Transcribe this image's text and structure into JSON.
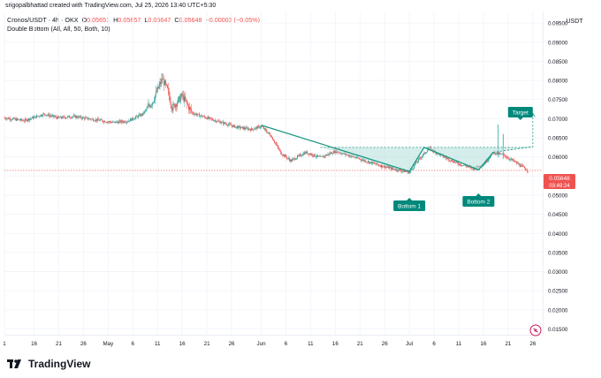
{
  "caption": "srigopalbhattad created with TradingView.com, Jul 25, 2026 13:40 UTC+5:30",
  "legend": {
    "symbol": "Cronos/USDT · 4h · OKX",
    "o_label": "O",
    "o_value": "0.05651",
    "h_label": "H",
    "h_value": "0.05657",
    "l_label": "L",
    "l_value": "0.05647",
    "c_label": "C",
    "c_value": "0.05648",
    "change": "−0.00003 (−0.05%)",
    "indicator": "Double Bottom (All, All, 50, Both, 10)"
  },
  "axis": {
    "currency": "USDT",
    "price_tag": "0.05648",
    "countdown": "03:49:24"
  },
  "annotations": {
    "bottom1": "Bottom 1",
    "bottom2": "Bottom 2",
    "target": "Target"
  },
  "brand": {
    "name": "TradingView"
  },
  "colors": {
    "up": "#26a69a",
    "down": "#ef5350",
    "pattern": "#1a9880",
    "pattern_fill": "#b2dfdb",
    "label_bg": "#00897b",
    "grid": "#f0f3fa",
    "price_line": "#ef5350"
  },
  "chart_data": {
    "type": "candlestick",
    "interval": "4h",
    "y_ticks": [
      "0.09500",
      "0.09000",
      "0.08500",
      "0.08000",
      "0.07500",
      "0.07000",
      "0.06500",
      "0.06000",
      "0.05500",
      "0.05000",
      "0.04500",
      "0.04000",
      "0.03500",
      "0.03000",
      "0.02500",
      "0.02000",
      "0.01500"
    ],
    "ylim": [
      0.0135,
      0.0978
    ],
    "x_ticks": [
      "1",
      "16",
      "21",
      "26",
      "May",
      "6",
      "11",
      "16",
      "21",
      "26",
      "Jun",
      "6",
      "11",
      "16",
      "21",
      "26",
      "Jul",
      "6",
      "11",
      "16",
      "21",
      "26"
    ],
    "x_dates": [
      "2026-04-10",
      "2026-04-16",
      "2026-04-21",
      "2026-04-26",
      "2026-05-01",
      "2026-05-06",
      "2026-05-11",
      "2026-05-16",
      "2026-05-21",
      "2026-05-26",
      "2026-06-01",
      "2026-06-06",
      "2026-06-11",
      "2026-06-16",
      "2026-06-21",
      "2026-06-26",
      "2026-07-01",
      "2026-07-06",
      "2026-07-11",
      "2026-07-16",
      "2026-07-21",
      "2026-07-26"
    ],
    "xlim": [
      "2026-04-10",
      "2026-07-28"
    ],
    "price_keypoints": [
      [
        "2026-04-10",
        0.0702
      ],
      [
        "2026-04-14",
        0.0695
      ],
      [
        "2026-04-18",
        0.0712
      ],
      [
        "2026-04-21",
        0.0702
      ],
      [
        "2026-04-24",
        0.0706
      ],
      [
        "2026-04-28",
        0.0698
      ],
      [
        "2026-05-02",
        0.069
      ],
      [
        "2026-05-05",
        0.0694
      ],
      [
        "2026-05-08",
        0.0712
      ],
      [
        "2026-05-10",
        0.0745
      ],
      [
        "2026-05-12",
        0.0805
      ],
      [
        "2026-05-13",
        0.0775
      ],
      [
        "2026-05-14",
        0.0728
      ],
      [
        "2026-05-16",
        0.076
      ],
      [
        "2026-05-18",
        0.0715
      ],
      [
        "2026-05-21",
        0.0702
      ],
      [
        "2026-05-24",
        0.069
      ],
      [
        "2026-05-27",
        0.0678
      ],
      [
        "2026-05-30",
        0.0672
      ],
      [
        "2026-06-01",
        0.068
      ],
      [
        "2026-06-03",
        0.0655
      ],
      [
        "2026-06-05",
        0.061
      ],
      [
        "2026-06-07",
        0.059
      ],
      [
        "2026-06-10",
        0.0612
      ],
      [
        "2026-06-13",
        0.0598
      ],
      [
        "2026-06-16",
        0.0615
      ],
      [
        "2026-06-19",
        0.0603
      ],
      [
        "2026-06-22",
        0.059
      ],
      [
        "2026-06-25",
        0.0578
      ],
      [
        "2026-06-28",
        0.0568
      ],
      [
        "2026-07-01",
        0.056
      ],
      [
        "2026-07-03",
        0.0595
      ],
      [
        "2026-07-05",
        0.0622
      ],
      [
        "2026-07-08",
        0.06
      ],
      [
        "2026-07-11",
        0.0582
      ],
      [
        "2026-07-14",
        0.057
      ],
      [
        "2026-07-16",
        0.058
      ],
      [
        "2026-07-18",
        0.0612
      ],
      [
        "2026-07-20",
        0.0605
      ],
      [
        "2026-07-22",
        0.059
      ],
      [
        "2026-07-25",
        0.05648
      ]
    ],
    "spikes": [
      {
        "date": "2026-07-19",
        "high": 0.0685
      },
      {
        "date": "2026-07-20",
        "high": 0.066
      }
    ],
    "double_bottom": {
      "line_points": [
        [
          "2026-06-01",
          0.0683
        ],
        [
          "2026-07-01",
          0.0562
        ],
        [
          "2026-07-04",
          0.0625
        ],
        [
          "2026-07-15",
          0.0566
        ],
        [
          "2026-07-18",
          0.0612
        ]
      ],
      "neckline": [
        [
          "2026-06-16",
          0.0625
        ],
        [
          "2026-07-26",
          0.0625
        ]
      ],
      "target_line": [
        [
          "2026-07-18",
          0.0612
        ],
        [
          "2026-07-26",
          0.0627
        ],
        [
          "2026-07-26",
          0.0714
        ]
      ],
      "bottom1": [
        "2026-07-01",
        0.0562
      ],
      "bottom2": [
        "2026-07-15",
        0.0566
      ]
    },
    "last_price": 0.05648
  }
}
